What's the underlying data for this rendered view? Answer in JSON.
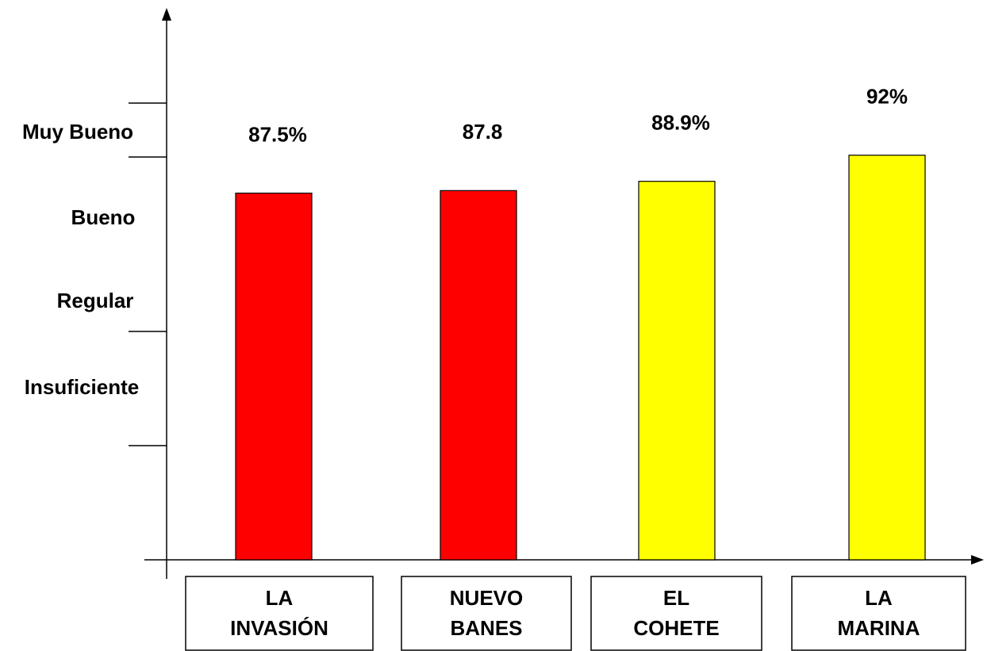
{
  "chart_data": {
    "type": "bar",
    "y_categories": [
      "Muy Bueno",
      "Bueno",
      "Regular",
      "Insuficiente"
    ],
    "categories": [
      [
        "LA",
        "INVASIÓN"
      ],
      [
        "NUEVO",
        "BANES"
      ],
      [
        "EL",
        "COHETE"
      ],
      [
        "LA",
        "MARINA"
      ]
    ],
    "values": [
      87.5,
      87.8,
      88.9,
      92
    ],
    "value_labels": [
      "87.5%",
      "87.8",
      "88.9%",
      "92%"
    ],
    "colors": [
      "#ff0000",
      "#ff0000",
      "#ffff00",
      "#ffff00"
    ],
    "ylim": [
      44,
      109
    ]
  }
}
